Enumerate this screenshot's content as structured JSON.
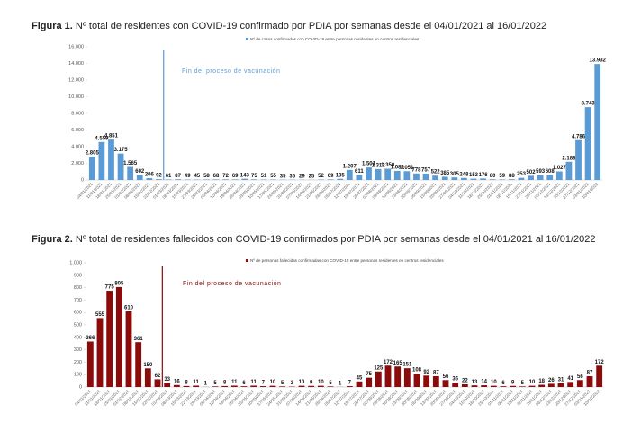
{
  "chart_data": [
    {
      "type": "bar",
      "label": "Figura 1.",
      "title": "Nº total de residentes con COVID-19 confirmado por PDIA por semanas desde el 04/01/2021 al 16/01/2022",
      "annotation": "Fin del proceso de vacunación",
      "series": [
        {
          "name": "Nº de casos confirmados con COVID-19 entre personas residentes en centros residenciales",
          "color": "#5b9bd5",
          "values": [
            2805,
            4559,
            4851,
            3175,
            1565,
            602,
            206,
            92,
            61,
            87,
            49,
            45,
            58,
            68,
            72,
            69,
            143,
            75,
            51,
            55,
            35,
            35,
            29,
            25,
            52,
            69,
            135,
            1207,
            611,
            1501,
            1312,
            1350,
            1089,
            1051,
            778,
            757,
            522,
            385,
            305,
            248,
            153,
            176,
            80,
            59,
            88,
            253,
            502,
            593,
            608,
            1027,
            2188,
            4786,
            8743,
            13932
          ],
          "value_labels": [
            "2.805",
            "4.559",
            "4.851",
            "3.175",
            "1.565",
            "602",
            "206",
            "92",
            "61",
            "87",
            "49",
            "45",
            "58",
            "68",
            "72",
            "69",
            "143",
            "75",
            "51",
            "55",
            "35",
            "35",
            "29",
            "25",
            "52",
            "69",
            "135",
            "1.207",
            "611",
            "1.501",
            "1.312",
            "1.350",
            "1.089",
            "1.051",
            "778",
            "757",
            "522",
            "385",
            "305",
            "248",
            "153",
            "176",
            "80",
            "59",
            "88",
            "253",
            "502",
            "593",
            "608",
            "1.027",
            "2.188",
            "4.786",
            "8.743",
            "13.932"
          ]
        }
      ],
      "categories": [
        "04/01/2021",
        "11/01/2021",
        "18/01/2021",
        "25/01/2021",
        "01/02/2021",
        "08/02/2021",
        "15/02/2021",
        "22/02/2021",
        "01/03/2021",
        "08/03/2021",
        "15/03/2021",
        "22/03/2021",
        "29/03/2021",
        "05/04/2021",
        "12/04/2021",
        "19/04/2021",
        "26/04/2021",
        "03/05/2021",
        "10/05/2021",
        "17/05/2021",
        "24/05/2021",
        "31/05/2021",
        "07/06/2021",
        "14/06/2021",
        "21/06/2021",
        "28/06/2021",
        "05/07/2021",
        "12/07/2021",
        "19/07/2021",
        "26/07/2021",
        "02/08/2021",
        "09/08/2021",
        "16/08/2021",
        "23/08/2021",
        "30/08/2021",
        "06/09/2021",
        "13/09/2021",
        "20/09/2021",
        "27/09/2021",
        "04/10/2021",
        "11/10/2021",
        "18/10/2021",
        "25/10/2021",
        "01/11/2021",
        "08/11/2021",
        "15/11/2021",
        "22/11/2021",
        "29/11/2021",
        "06/12/2021",
        "13/12/2021",
        "20/12/2021",
        "27/12/2021",
        "03/01/2022",
        "10/01/2022"
      ],
      "ylim": [
        0,
        16000
      ],
      "yticks": [
        0,
        {
          "value": 2000,
          "label": "2.000"
        },
        {
          "value": 4000,
          "label": "4.000"
        },
        {
          "value": 6000,
          "label": "6.000"
        },
        {
          "value": 8000,
          "label": "8.000"
        },
        {
          "value": 10000,
          "label": "10.000"
        },
        {
          "value": 12000,
          "label": "12.000"
        },
        {
          "value": 14000,
          "label": "14.000"
        },
        {
          "value": 16000,
          "label": "16.000"
        }
      ]
    },
    {
      "type": "bar",
      "label": "Figura 2.",
      "title": "Nº total de residentes fallecidos con COVID-19 confirmados por PDIA por semanas desde el 04/01/2021 al 16/01/2022",
      "annotation": "Fin del proceso de vacunación",
      "series": [
        {
          "name": "Nº de personas fallecidas confirmadas con COVID-19 entre personas residentes en centros residenciales",
          "color": "#8b0a0a",
          "values": [
            366,
            555,
            775,
            805,
            610,
            361,
            150,
            62,
            33,
            16,
            8,
            11,
            1,
            5,
            8,
            11,
            6,
            11,
            7,
            10,
            5,
            3,
            10,
            9,
            10,
            5,
            1,
            7,
            45,
            75,
            125,
            172,
            165,
            151,
            108,
            92,
            87,
            56,
            36,
            22,
            13,
            14,
            10,
            6,
            9,
            5,
            10,
            18,
            26,
            31,
            41,
            56,
            87,
            172
          ]
        }
      ],
      "categories": [
        "04/01/2021",
        "11/01/2021",
        "18/01/2021",
        "25/01/2021",
        "01/02/2021",
        "08/02/2021",
        "15/02/2021",
        "22/02/2021",
        "01/03/2021",
        "08/03/2021",
        "15/03/2021",
        "22/03/2021",
        "29/03/2021",
        "05/04/2021",
        "12/04/2021",
        "19/04/2021",
        "26/04/2021",
        "03/05/2021",
        "10/05/2021",
        "17/05/2021",
        "24/05/2021",
        "31/05/2021",
        "07/06/2021",
        "14/06/2021",
        "21/06/2021",
        "28/06/2021",
        "05/07/2021",
        "12/07/2021",
        "19/07/2021",
        "26/07/2021",
        "02/08/2021",
        "09/08/2021",
        "16/08/2021",
        "23/08/2021",
        "30/08/2021",
        "06/09/2021",
        "13/09/2021",
        "20/09/2021",
        "27/09/2021",
        "04/10/2021",
        "11/10/2021",
        "18/10/2021",
        "25/10/2021",
        "01/11/2021",
        "08/11/2021",
        "15/11/2021",
        "22/11/2021",
        "29/11/2021",
        "06/12/2021",
        "13/12/2021",
        "20/12/2021",
        "27/12/2021",
        "03/01/2022",
        "10/01/2022"
      ],
      "ylim": [
        0,
        1000
      ],
      "yticks": [
        0,
        100,
        200,
        300,
        400,
        500,
        600,
        700,
        800,
        900,
        {
          "value": 1000,
          "label": "1.000"
        }
      ]
    }
  ]
}
